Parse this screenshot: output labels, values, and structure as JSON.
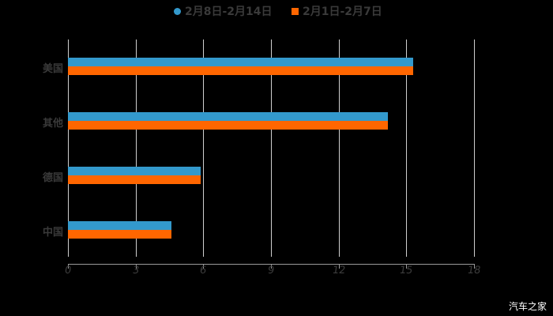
{
  "chart_data": {
    "type": "bar",
    "orientation": "horizontal",
    "title": "",
    "categories": [
      "美国",
      "其他",
      "德国",
      "中国"
    ],
    "series": [
      {
        "name": "2月8日-2月14日",
        "color": "#3399cc",
        "marker": "circle",
        "values": [
          15.3,
          14.2,
          5.9,
          4.6
        ]
      },
      {
        "name": "2月1日-2月7日",
        "color": "#ff6600",
        "marker": "square",
        "values": [
          15.3,
          14.2,
          5.9,
          4.6
        ]
      }
    ],
    "xlabel": "",
    "ylabel": "",
    "xlim": [
      0,
      18
    ],
    "xticks": [
      "0",
      "3",
      "6",
      "9",
      "12",
      "15",
      "18"
    ],
    "grid": true,
    "legend_position": "top"
  },
  "legend": {
    "items": [
      {
        "label": "2月8日-2月14日"
      },
      {
        "label": "2月1日-2月7日"
      }
    ]
  },
  "watermark": "汽车之家"
}
